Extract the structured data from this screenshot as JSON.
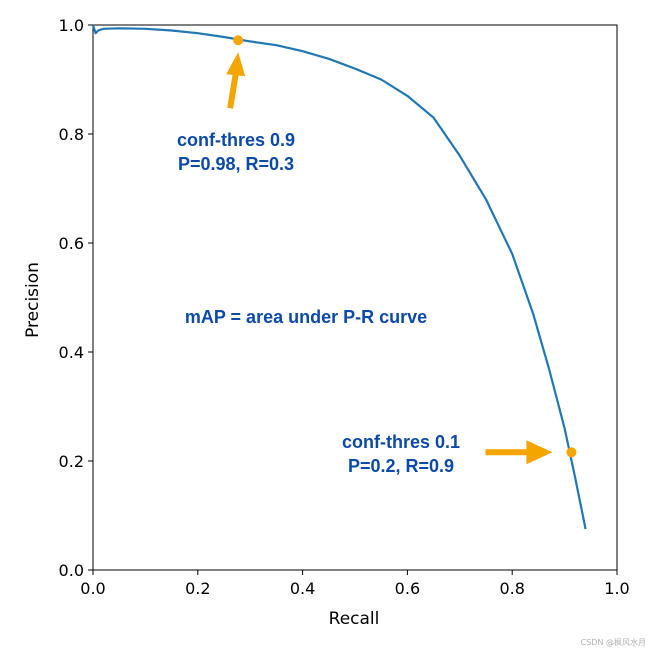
{
  "chart_data": {
    "type": "line",
    "title": "",
    "xlabel": "Recall",
    "ylabel": "Precision",
    "xlim": [
      0.0,
      1.0
    ],
    "ylim": [
      0.0,
      1.0
    ],
    "xticks": [
      "0.0",
      "0.2",
      "0.4",
      "0.6",
      "0.8",
      "1.0"
    ],
    "yticks": [
      "0.0",
      "0.2",
      "0.4",
      "0.6",
      "0.8",
      "1.0"
    ],
    "grid": false,
    "series": [
      {
        "color": "#1f77b4",
        "points": [
          [
            0.0,
            1.0
          ],
          [
            0.005,
            0.985
          ],
          [
            0.01,
            0.99
          ],
          [
            0.02,
            0.993
          ],
          [
            0.05,
            0.994
          ],
          [
            0.1,
            0.993
          ],
          [
            0.15,
            0.99
          ],
          [
            0.2,
            0.985
          ],
          [
            0.25,
            0.978
          ],
          [
            0.3,
            0.97
          ],
          [
            0.35,
            0.963
          ],
          [
            0.4,
            0.952
          ],
          [
            0.45,
            0.938
          ],
          [
            0.5,
            0.92
          ],
          [
            0.55,
            0.9
          ],
          [
            0.6,
            0.87
          ],
          [
            0.65,
            0.83
          ],
          [
            0.7,
            0.76
          ],
          [
            0.75,
            0.68
          ],
          [
            0.8,
            0.58
          ],
          [
            0.84,
            0.47
          ],
          [
            0.87,
            0.37
          ],
          [
            0.9,
            0.26
          ],
          [
            0.92,
            0.17
          ],
          [
            0.94,
            0.075
          ]
        ]
      }
    ],
    "annotations": [
      {
        "line1": "conf-thres 0.9",
        "line2": "P=0.98, R=0.3",
        "point": [
          0.277,
          0.972
        ],
        "color": "#0b4aa8"
      },
      {
        "line1": "conf-thres 0.1",
        "line2": "P=0.2, R=0.9",
        "point": [
          0.913,
          0.216
        ],
        "color": "#0b4aa8"
      }
    ],
    "center_text": "mAP = area under P-R curve",
    "marker_color": "#f5a500"
  },
  "watermark": "CSDN @枫风水月"
}
